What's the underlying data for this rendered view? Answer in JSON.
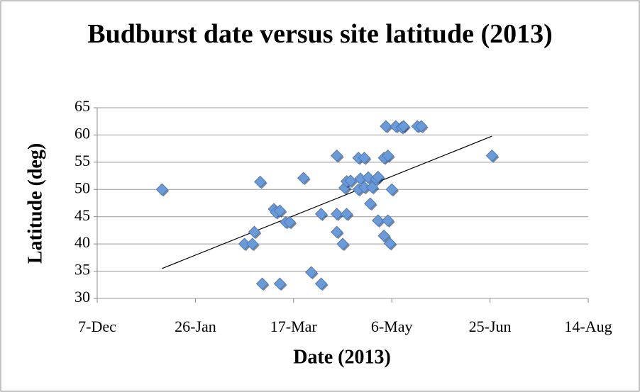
{
  "chart_data": {
    "type": "scatter",
    "title": "Budburst date versus site latitude (2013)",
    "x_label": "Date (2013)",
    "y_label": "Latitude (deg)",
    "color": "#6a9bd8",
    "trendline": true,
    "grid": true,
    "x": [
      41283,
      41325,
      41329,
      41330,
      41333,
      41334,
      41340,
      41341,
      41343,
      41343,
      41346,
      41348,
      41355,
      41359,
      41364,
      41364,
      41372,
      41372,
      41372,
      41375,
      41376,
      41377,
      41377,
      41379,
      41383,
      41383,
      41384,
      41386,
      41386,
      41388,
      41389,
      41390,
      41392,
      41393,
      41393,
      41396,
      41396,
      41397,
      41398,
      41398,
      41399,
      41400,
      41402,
      41405,
      41406,
      41413,
      41415,
      41451
    ],
    "y": [
      50,
      40,
      40,
      42.2,
      51.4,
      32.7,
      46.4,
      45.8,
      46.1,
      32.7,
      44,
      44,
      52.1,
      34.8,
      45.5,
      32.7,
      56.2,
      45.5,
      42.2,
      40,
      50.3,
      51.5,
      45.5,
      51.6,
      55.8,
      50,
      52,
      55.8,
      50.4,
      52.2,
      47.4,
      50.4,
      51.9,
      44.3,
      52.3,
      41.5,
      55.8,
      61.6,
      56.2,
      44.3,
      40.1,
      50,
      61.6,
      61.4,
      61.6,
      61.6,
      61.6,
      56.2
    ],
    "xlim": [
      41250,
      41500
    ],
    "xticks": [
      {
        "value": 41250,
        "label": "7-Dec"
      },
      {
        "value": 41300,
        "label": "26-Jan"
      },
      {
        "value": 41350,
        "label": "17-Mar"
      },
      {
        "value": 41400,
        "label": "6-May"
      },
      {
        "value": 41450,
        "label": "25-Jun"
      },
      {
        "value": 41500,
        "label": "14-Aug"
      }
    ],
    "ylim": [
      30,
      65
    ],
    "yticks": [
      30,
      35,
      40,
      45,
      50,
      55,
      60,
      65
    ]
  }
}
